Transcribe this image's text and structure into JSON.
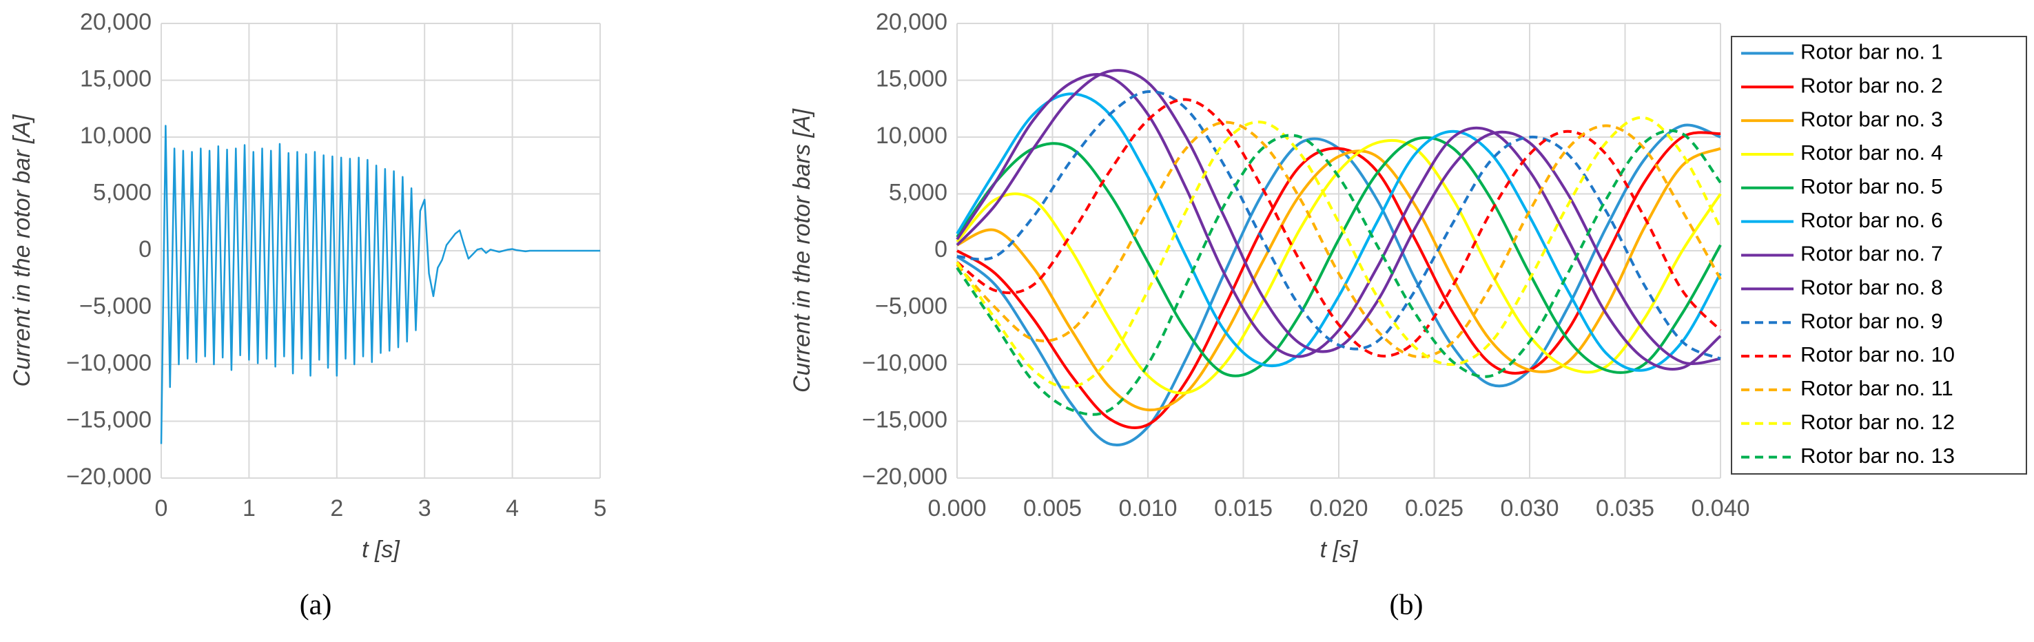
{
  "chart_data": [
    {
      "type": "line",
      "ylabel": "Current in the rotor bar [A]",
      "xlabel": "t [s]",
      "panel_label": "(a)",
      "xlim": [
        0,
        5
      ],
      "xticks": [
        0,
        1,
        2,
        3,
        4,
        5
      ],
      "ylim": [
        -20000,
        20000
      ],
      "yticks": [
        {
          "value": -20000,
          "label": "−20,000"
        },
        {
          "value": -15000,
          "label": "−15,000"
        },
        {
          "value": -10000,
          "label": "−10,000"
        },
        {
          "value": -5000,
          "label": "−5,000"
        },
        0,
        {
          "value": 5000,
          "label": "5,000"
        },
        {
          "value": 10000,
          "label": "10,000"
        },
        {
          "value": 15000,
          "label": "15,000"
        },
        {
          "value": 20000,
          "label": "20,000"
        }
      ],
      "grid": true,
      "x": [
        0,
        0.05,
        0.1,
        0.15,
        0.2,
        0.25,
        0.3,
        0.35,
        0.4,
        0.45,
        0.5,
        0.55,
        0.6,
        0.65,
        0.7,
        0.75,
        0.8,
        0.85,
        0.9,
        0.95,
        1,
        1.05,
        1.1,
        1.15,
        1.2,
        1.25,
        1.3,
        1.35,
        1.4,
        1.45,
        1.5,
        1.55,
        1.6,
        1.65,
        1.7,
        1.75,
        1.8,
        1.85,
        1.9,
        1.95,
        2,
        2.05,
        2.1,
        2.15,
        2.2,
        2.25,
        2.3,
        2.35,
        2.4,
        2.45,
        2.5,
        2.55,
        2.6,
        2.65,
        2.7,
        2.75,
        2.8,
        2.85,
        2.9,
        2.95,
        3,
        3.05,
        3.1,
        3.15,
        3.2,
        3.25,
        3.3,
        3.35,
        3.4,
        3.45,
        3.5,
        3.55,
        3.6,
        3.65,
        3.7,
        3.75,
        3.8,
        3.85,
        3.9,
        3.95,
        4,
        4.05,
        4.1,
        4.15,
        4.2,
        4.25,
        4.3,
        4.35,
        4.4,
        4.45,
        4.5,
        4.55,
        4.6,
        4.65,
        4.7,
        4.75,
        4.8,
        4.85,
        4.9,
        4.95,
        5
      ],
      "series": [
        {
          "color": "#1b9ad8",
          "values": [
            -17000,
            11000,
            -12000,
            9000,
            -10000,
            8800,
            -9500,
            8700,
            -9800,
            9000,
            -9300,
            8800,
            -10000,
            9200,
            -9400,
            8900,
            -10500,
            9000,
            -9200,
            9300,
            -9600,
            8700,
            -9900,
            9000,
            -9500,
            8800,
            -10200,
            9400,
            -9300,
            8600,
            -10800,
            8700,
            -9500,
            8500,
            -11000,
            8700,
            -9600,
            8400,
            -10300,
            8300,
            -11000,
            8200,
            -9500,
            8100,
            -10000,
            8200,
            -9300,
            8000,
            -9800,
            7500,
            -9000,
            7200,
            -8800,
            7000,
            -8500,
            6500,
            -8000,
            5500,
            -7000,
            3500,
            4500,
            -2000,
            -4000,
            -1500,
            -800,
            500,
            1000,
            1500,
            1800,
            500,
            -700,
            -300,
            100,
            200,
            -200,
            100,
            0,
            -100,
            0,
            100,
            150,
            50,
            0,
            -50,
            0,
            0,
            0,
            0,
            0,
            0,
            0,
            0,
            0,
            0,
            0,
            0,
            0,
            0,
            0,
            0,
            0
          ]
        }
      ]
    },
    {
      "type": "line",
      "ylabel": "Current in the rotor bars [A]",
      "xlabel": "t [s]",
      "panel_label": "(b)",
      "xlim": [
        0,
        0.04
      ],
      "xticks": [
        {
          "value": 0,
          "label": "0.000"
        },
        {
          "value": 0.005,
          "label": "0.005"
        },
        {
          "value": 0.01,
          "label": "0.010"
        },
        {
          "value": 0.015,
          "label": "0.015"
        },
        {
          "value": 0.02,
          "label": "0.020"
        },
        {
          "value": 0.025,
          "label": "0.025"
        },
        {
          "value": 0.03,
          "label": "0.030"
        },
        {
          "value": 0.035,
          "label": "0.035"
        },
        {
          "value": 0.04,
          "label": "0.040"
        }
      ],
      "ylim": [
        -20000,
        20000
      ],
      "yticks": [
        {
          "value": -20000,
          "label": "−20,000"
        },
        {
          "value": -15000,
          "label": "−15,000"
        },
        {
          "value": -10000,
          "label": "−10,000"
        },
        {
          "value": -5000,
          "label": "−5,000"
        },
        0,
        {
          "value": 5000,
          "label": "5,000"
        },
        {
          "value": 10000,
          "label": "10,000"
        },
        {
          "value": 15000,
          "label": "15,000"
        },
        {
          "value": 20000,
          "label": "20,000"
        }
      ],
      "grid": true,
      "legend": "right",
      "smooth": true,
      "x": [
        0,
        0.002,
        0.004,
        0.006,
        0.008,
        0.01,
        0.012,
        0.014,
        0.016,
        0.018,
        0.02,
        0.022,
        0.024,
        0.026,
        0.028,
        0.03,
        0.032,
        0.034,
        0.036,
        0.038,
        0.04
      ],
      "series": [
        {
          "name": "Rotor bar no. 1",
          "color": "#2e95d3",
          "dashed": false,
          "values": [
            -500,
            -3000,
            -8000,
            -13500,
            -17000,
            -15500,
            -9500,
            -2000,
            5000,
            9500,
            9000,
            4500,
            -2500,
            -8500,
            -11800,
            -10500,
            -5000,
            2000,
            8000,
            11000,
            10000
          ]
        },
        {
          "name": "Rotor bar no. 2",
          "color": "#ff0000",
          "dashed": false,
          "values": [
            0,
            -2000,
            -6000,
            -11000,
            -14800,
            -15300,
            -11500,
            -5000,
            2000,
            7500,
            9000,
            7000,
            1000,
            -5500,
            -10000,
            -10500,
            -7000,
            -500,
            6000,
            10000,
            10300
          ]
        },
        {
          "name": "Rotor bar no. 3",
          "color": "#ffb000",
          "dashed": false,
          "values": [
            500,
            1800,
            -1500,
            -7000,
            -12000,
            -14000,
            -12500,
            -7500,
            -1000,
            5000,
            8300,
            8300,
            4000,
            -2500,
            -8000,
            -10500,
            -9800,
            -5000,
            2000,
            7500,
            9000
          ]
        },
        {
          "name": "Rotor bar no. 4",
          "color": "#ffff00",
          "dashed": false,
          "values": [
            800,
            4500,
            4500,
            0,
            -6000,
            -11000,
            -12500,
            -10000,
            -4500,
            2000,
            7000,
            9500,
            9000,
            4500,
            -2000,
            -7500,
            -10300,
            -10200,
            -6000,
            0,
            5000
          ]
        },
        {
          "name": "Rotor bar no. 5",
          "color": "#00b050",
          "dashed": false,
          "values": [
            1200,
            6000,
            9000,
            9000,
            5000,
            -1000,
            -7000,
            -10800,
            -10000,
            -5500,
            1000,
            6800,
            9800,
            9000,
            4500,
            -2000,
            -7800,
            -10500,
            -10000,
            -5500,
            500
          ]
        },
        {
          "name": "Rotor bar no. 6",
          "color": "#00b0f0",
          "dashed": false,
          "values": [
            1500,
            7000,
            12000,
            13800,
            12000,
            6500,
            -500,
            -7000,
            -10000,
            -9000,
            -4000,
            2500,
            8500,
            10500,
            8500,
            3000,
            -3500,
            -9000,
            -10500,
            -8000,
            -2000
          ]
        },
        {
          "name": "Rotor bar no. 7",
          "color": "#7030a0",
          "dashed": false,
          "values": [
            1000,
            6000,
            11500,
            14800,
            15300,
            12000,
            5500,
            -2000,
            -7500,
            -9300,
            -7000,
            -1500,
            5000,
            10000,
            10500,
            7000,
            1000,
            -5500,
            -9500,
            -10300,
            -7500
          ]
        },
        {
          "name": "Rotor bar no. 8",
          "color": "#7030a0",
          "dashed": false,
          "values": [
            500,
            4000,
            9000,
            13500,
            15800,
            14800,
            10000,
            3000,
            -4000,
            -8200,
            -8500,
            -4500,
            2000,
            7500,
            10300,
            9500,
            5000,
            -1500,
            -7000,
            -9800,
            -9500
          ]
        },
        {
          "name": "Rotor bar no. 9",
          "color": "#1f77c8",
          "dashed": true,
          "values": [
            -500,
            -500,
            3000,
            8000,
            12000,
            14000,
            12500,
            7500,
            1000,
            -5000,
            -8300,
            -8000,
            -3500,
            2500,
            8000,
            10000,
            8500,
            3500,
            -3000,
            -8000,
            -9500
          ]
        },
        {
          "name": "Rotor bar no. 10",
          "color": "#ff0000",
          "dashed": true,
          "values": [
            -1000,
            -3500,
            -3000,
            1500,
            7000,
            11500,
            13300,
            11000,
            5500,
            -1000,
            -6500,
            -9200,
            -8000,
            -3000,
            3500,
            8500,
            10500,
            8500,
            3000,
            -3500,
            -7000
          ]
        },
        {
          "name": "Rotor bar no. 11",
          "color": "#ffb000",
          "dashed": true,
          "values": [
            -1200,
            -5000,
            -7800,
            -7000,
            -2500,
            3500,
            9000,
            11300,
            9500,
            4500,
            -2000,
            -7000,
            -9300,
            -8000,
            -3000,
            3500,
            9000,
            11000,
            9000,
            3500,
            -2500
          ]
        },
        {
          "name": "Rotor bar no. 12",
          "color": "#ffff00",
          "dashed": true,
          "values": [
            -1000,
            -6000,
            -10500,
            -12000,
            -9500,
            -3500,
            3500,
            9500,
            11300,
            8500,
            2500,
            -4000,
            -8500,
            -10000,
            -8000,
            -2500,
            4000,
            9500,
            11700,
            8500,
            2000
          ]
        },
        {
          "name": "Rotor bar no. 13",
          "color": "#00b050",
          "dashed": true,
          "values": [
            -1500,
            -6500,
            -11500,
            -14000,
            -14000,
            -10000,
            -3000,
            4000,
            9000,
            10000,
            6500,
            500,
            -5500,
            -9800,
            -11000,
            -8000,
            -2000,
            4500,
            9500,
            10300,
            6000
          ]
        }
      ]
    }
  ]
}
